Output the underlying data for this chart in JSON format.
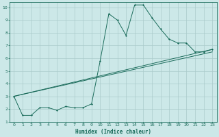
{
  "xlabel": "Humidex (Indice chaleur)",
  "bg_color": "#cce8e8",
  "grid_color": "#aacaca",
  "line_color": "#1a6b5a",
  "xlim": [
    -0.5,
    23.5
  ],
  "ylim": [
    1,
    10.4
  ],
  "xticks": [
    0,
    1,
    2,
    3,
    4,
    5,
    6,
    7,
    8,
    9,
    10,
    11,
    12,
    13,
    14,
    15,
    16,
    17,
    18,
    19,
    20,
    21,
    22,
    23
  ],
  "yticks": [
    1,
    2,
    3,
    4,
    5,
    6,
    7,
    8,
    9,
    10
  ],
  "curve1_x": [
    0,
    1,
    2,
    3,
    4,
    5,
    6,
    7,
    8,
    9,
    10,
    11,
    12,
    13,
    14,
    15,
    16,
    17,
    18,
    19,
    20,
    21,
    22,
    23
  ],
  "curve1_y": [
    3.0,
    1.5,
    1.5,
    2.1,
    2.1,
    1.9,
    2.2,
    2.1,
    2.1,
    2.4,
    5.8,
    9.5,
    9.0,
    7.8,
    10.2,
    10.2,
    9.2,
    8.3,
    7.5,
    7.2,
    7.2,
    6.5,
    6.5,
    6.7
  ],
  "curve2_x": [
    0,
    23
  ],
  "curve2_y": [
    3.0,
    6.7
  ],
  "curve3_x": [
    0,
    23
  ],
  "curve3_y": [
    3.0,
    6.5
  ]
}
